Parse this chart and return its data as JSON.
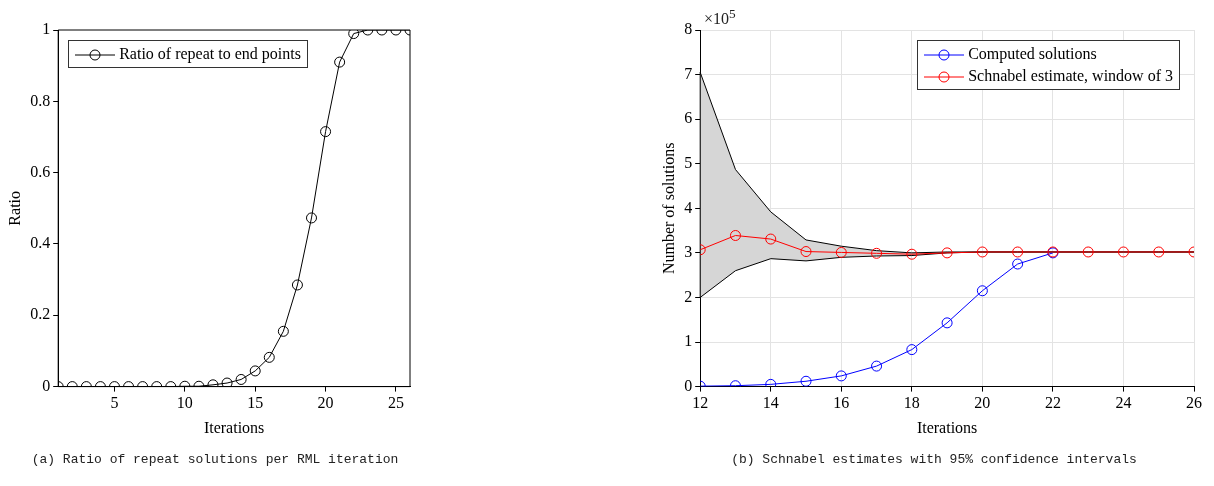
{
  "chart_data": [
    {
      "type": "line",
      "xlabel": "Iterations",
      "ylabel": "Ratio",
      "x": [
        1,
        2,
        3,
        4,
        5,
        6,
        7,
        8,
        9,
        10,
        11,
        12,
        13,
        14,
        15,
        16,
        17,
        18,
        19,
        20,
        21,
        22,
        23,
        24,
        25,
        26
      ],
      "xlim": [
        1,
        26
      ],
      "xticks": [
        5,
        10,
        15,
        20,
        25
      ],
      "ylim": [
        0,
        1
      ],
      "yticks": [
        0,
        0.2,
        0.4,
        0.6,
        0.8,
        1
      ],
      "grid": false,
      "legend": "top left",
      "marker": "circle",
      "line_style": "solid",
      "series": [
        {
          "name": "Ratio of repeat to end points",
          "color": "#000000",
          "values": [
            0,
            0,
            0,
            0,
            0,
            0,
            0,
            0,
            0,
            0.001,
            0.001,
            0.005,
            0.01,
            0.02,
            0.044,
            0.082,
            0.155,
            0.285,
            0.473,
            0.715,
            0.91,
            0.99,
            1,
            1,
            1,
            1
          ]
        }
      ],
      "annotations": [
        "(a) Ratio of repeat solutions per RML iteration"
      ]
    },
    {
      "type": "line",
      "xlabel": "Iterations",
      "ylabel": "Number of solutions",
      "x": [
        12,
        13,
        14,
        15,
        16,
        17,
        18,
        19,
        20,
        21,
        22,
        23,
        24,
        25,
        26
      ],
      "xlim": [
        12,
        26
      ],
      "xticks": [
        12,
        14,
        16,
        18,
        20,
        22,
        24,
        26
      ],
      "ylim": [
        0,
        8
      ],
      "yticks": [
        0,
        1,
        2,
        3,
        4,
        5,
        6,
        7,
        8
      ],
      "grid": true,
      "legend": "top right",
      "marker": "circle",
      "line_style": "solid",
      "series": [
        {
          "name": "Computed solutions",
          "color": "#0000ff",
          "values": [
            0.01,
            0.02,
            0.05,
            0.12,
            0.24,
            0.46,
            0.83,
            1.43,
            2.15,
            2.75,
            3.0,
            null,
            null,
            null,
            null
          ]
        },
        {
          "name": "Schnabel estimate, window of 3",
          "color": "#ff0000",
          "values": [
            3.07,
            3.39,
            3.31,
            3.03,
            3.01,
            2.99,
            2.97,
            3.0,
            3.02,
            3.02,
            3.02,
            3.02,
            3.02,
            3.02,
            3.02
          ],
          "lower": [
            2.0,
            2.6,
            2.87,
            2.82,
            2.9,
            2.93,
            2.94,
            3.0,
            3.02,
            3.02,
            3.02,
            3.02,
            3.02,
            3.02,
            3.02
          ],
          "upper": [
            7.05,
            4.87,
            3.92,
            3.29,
            3.15,
            3.05,
            3.0,
            3.02,
            3.02,
            3.02,
            3.02,
            3.02,
            3.02,
            3.02,
            3.02
          ]
        }
      ],
      "annotations": [
        "×10$^{5}$",
        "(b) Schnabel estimates with 95% confidence intervals"
      ]
    }
  ]
}
